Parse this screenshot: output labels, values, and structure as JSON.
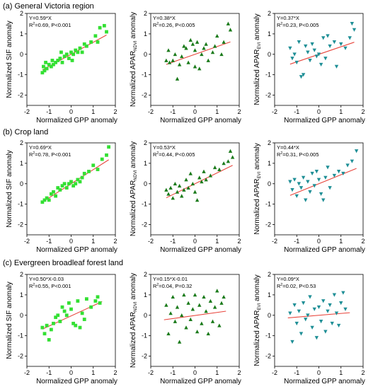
{
  "rows": [
    {
      "label": "(a) General Victoria region"
    },
    {
      "label": "(b) Crop land"
    },
    {
      "label": "(c) Evergreen broadleaf forest land"
    }
  ],
  "colors": {
    "sif": "#33e033",
    "ndvi": "#1a7a1a",
    "evi": "#1f8f96",
    "fit": "#e8453c"
  },
  "chart_data": [
    {
      "type": "scatter",
      "row": 0,
      "col": 0,
      "marker": "square",
      "color": "#33e033",
      "xlabel": "Normalized GPP anomaly",
      "ylabel": "Normalized SIF anomaly",
      "xlim": [
        -2,
        2
      ],
      "ylim": [
        -2.5,
        2
      ],
      "xticks": [
        -2,
        -1,
        0,
        1,
        2
      ],
      "yticks": [
        -2,
        -1,
        0,
        1,
        2
      ],
      "eq": "Y=0.59*X",
      "r2_prefix": "R",
      "r2_sup": "2",
      "r2_rest": "=0.69, P<0.001",
      "fit": {
        "slope": 0.59,
        "intercept": 0,
        "x": [
          -1.3,
          1.6
        ]
      },
      "points": [
        [
          -1.3,
          -0.9
        ],
        [
          -1.25,
          -0.6
        ],
        [
          -1.2,
          -0.8
        ],
        [
          -1.15,
          -0.4
        ],
        [
          -1.1,
          -0.7
        ],
        [
          -1.0,
          -0.5
        ],
        [
          -0.9,
          -0.6
        ],
        [
          -0.85,
          -0.3
        ],
        [
          -0.8,
          -0.5
        ],
        [
          -0.7,
          -0.4
        ],
        [
          -0.6,
          -0.3
        ],
        [
          -0.5,
          -0.2
        ],
        [
          -0.45,
          0.1
        ],
        [
          -0.4,
          -0.4
        ],
        [
          -0.3,
          -0.1
        ],
        [
          -0.2,
          0.0
        ],
        [
          -0.1,
          -0.2
        ],
        [
          0.0,
          0.1
        ],
        [
          0.05,
          -0.3
        ],
        [
          0.1,
          0.0
        ],
        [
          0.2,
          0.2
        ],
        [
          0.3,
          0.1
        ],
        [
          0.4,
          0.3
        ],
        [
          0.5,
          0.1
        ],
        [
          0.6,
          0.5
        ],
        [
          0.7,
          0.4
        ],
        [
          0.9,
          0.6
        ],
        [
          1.1,
          0.9
        ],
        [
          1.2,
          0.6
        ],
        [
          1.3,
          1.3
        ],
        [
          1.5,
          1.4
        ],
        [
          1.6,
          1.1
        ]
      ]
    },
    {
      "type": "scatter",
      "row": 0,
      "col": 1,
      "marker": "triangle-up",
      "color": "#1a7a1a",
      "xlabel": "Normalized GPP anomaly",
      "ylabel_main": "Normalized APAR",
      "ylabel_sub": "NDVI",
      "ylabel_tail": " anomaly",
      "xlim": [
        -2,
        2
      ],
      "ylim": [
        -2.5,
        2
      ],
      "xticks": [
        -2,
        -1,
        0,
        1,
        2
      ],
      "yticks": [
        -2,
        -1,
        0,
        1,
        2
      ],
      "eq": "Y=0.38*X",
      "r2_prefix": "R",
      "r2_sup": "2",
      "r2_rest": "=0.26, P<0.005",
      "fit": {
        "slope": 0.38,
        "intercept": 0,
        "x": [
          -1.3,
          1.6
        ]
      },
      "points": [
        [
          -1.3,
          -0.3
        ],
        [
          -1.2,
          0.2
        ],
        [
          -1.15,
          -0.4
        ],
        [
          -1.0,
          -0.3
        ],
        [
          -0.9,
          0.0
        ],
        [
          -0.8,
          -1.2
        ],
        [
          -0.7,
          -0.5
        ],
        [
          -0.6,
          -0.1
        ],
        [
          -0.5,
          0.4
        ],
        [
          -0.4,
          0.3
        ],
        [
          -0.3,
          -0.4
        ],
        [
          -0.2,
          0.7
        ],
        [
          -0.1,
          0.5
        ],
        [
          0.0,
          0.2
        ],
        [
          0.0,
          -0.6
        ],
        [
          0.1,
          0.6
        ],
        [
          0.2,
          -0.7
        ],
        [
          0.3,
          0.0
        ],
        [
          0.4,
          0.3
        ],
        [
          0.5,
          0.5
        ],
        [
          0.6,
          -0.3
        ],
        [
          0.8,
          0.1
        ],
        [
          0.9,
          0.4
        ],
        [
          1.0,
          0.9
        ],
        [
          1.2,
          0.0
        ],
        [
          1.3,
          0.6
        ],
        [
          1.5,
          1.5
        ],
        [
          1.6,
          1.2
        ]
      ]
    },
    {
      "type": "scatter",
      "row": 0,
      "col": 2,
      "marker": "triangle-down",
      "color": "#1f8f96",
      "xlabel": "Normalized GPP anomaly",
      "ylabel_main": "Normalized APAR",
      "ylabel_sub": "EVI",
      "ylabel_tail": " anomaly",
      "xlim": [
        -2,
        2
      ],
      "ylim": [
        -2.5,
        2
      ],
      "xticks": [
        -2,
        -1,
        0,
        1,
        2
      ],
      "yticks": [
        -2,
        -1,
        0,
        1,
        2
      ],
      "eq": "Y=0.37*X",
      "r2_prefix": "R",
      "r2_sup": "2",
      "r2_rest": "=0.23, P<0.005",
      "fit": {
        "slope": 0.37,
        "intercept": 0,
        "x": [
          -1.3,
          1.6
        ]
      },
      "points": [
        [
          -1.3,
          0.3
        ],
        [
          -1.2,
          -0.2
        ],
        [
          -1.1,
          0.0
        ],
        [
          -1.0,
          -0.4
        ],
        [
          -0.9,
          0.6
        ],
        [
          -0.8,
          -1.1
        ],
        [
          -0.7,
          -1.0
        ],
        [
          -0.6,
          0.4
        ],
        [
          -0.5,
          0.1
        ],
        [
          -0.4,
          -0.3
        ],
        [
          -0.3,
          0.5
        ],
        [
          -0.2,
          0.2
        ],
        [
          -0.1,
          -0.1
        ],
        [
          0.0,
          0.0
        ],
        [
          0.1,
          -0.5
        ],
        [
          0.2,
          0.8
        ],
        [
          0.3,
          -0.2
        ],
        [
          0.4,
          0.9
        ],
        [
          0.5,
          0.4
        ],
        [
          0.7,
          0.6
        ],
        [
          0.8,
          -0.6
        ],
        [
          1.0,
          0.5
        ],
        [
          1.2,
          0.3
        ],
        [
          1.4,
          0.8
        ],
        [
          1.5,
          1.5
        ],
        [
          1.6,
          1.2
        ]
      ]
    },
    {
      "type": "scatter",
      "row": 1,
      "col": 0,
      "marker": "square",
      "color": "#33e033",
      "xlabel": "Normalized GPP anomaly",
      "ylabel": "Normalized SIF anomaly",
      "xlim": [
        -2,
        2
      ],
      "ylim": [
        -2.5,
        2
      ],
      "xticks": [
        -2,
        -1,
        0,
        1,
        2
      ],
      "yticks": [
        -2,
        -1,
        0,
        1,
        2
      ],
      "eq": "Y=0.69*X",
      "r2_prefix": "R",
      "r2_sup": "2",
      "r2_rest": "=0.78, P<0.001",
      "fit": {
        "slope": 0.69,
        "intercept": 0,
        "x": [
          -1.3,
          1.7
        ]
      },
      "points": [
        [
          -1.3,
          -0.9
        ],
        [
          -1.2,
          -0.8
        ],
        [
          -1.1,
          -0.7
        ],
        [
          -1.0,
          -0.8
        ],
        [
          -0.9,
          -0.5
        ],
        [
          -0.8,
          -0.4
        ],
        [
          -0.7,
          -0.6
        ],
        [
          -0.6,
          -0.2
        ],
        [
          -0.5,
          -0.3
        ],
        [
          -0.4,
          -0.1
        ],
        [
          -0.3,
          0.0
        ],
        [
          -0.2,
          -0.2
        ],
        [
          -0.1,
          0.0
        ],
        [
          0.0,
          0.1
        ],
        [
          0.1,
          -0.1
        ],
        [
          0.2,
          0.0
        ],
        [
          0.3,
          0.2
        ],
        [
          0.4,
          0.1
        ],
        [
          0.5,
          0.3
        ],
        [
          0.6,
          0.5
        ],
        [
          0.8,
          0.6
        ],
        [
          1.0,
          0.9
        ],
        [
          1.2,
          0.7
        ],
        [
          1.4,
          1.2
        ],
        [
          1.6,
          1.4
        ],
        [
          1.7,
          1.8
        ]
      ]
    },
    {
      "type": "scatter",
      "row": 1,
      "col": 1,
      "marker": "triangle-up",
      "color": "#1a7a1a",
      "xlabel": "Normalized GPP anomaly",
      "ylabel_main": "Normalized APAR",
      "ylabel_sub": "NDVI",
      "ylabel_tail": " anomaly",
      "xlim": [
        -2,
        2
      ],
      "ylim": [
        -2.5,
        2
      ],
      "xticks": [
        -2,
        -1,
        0,
        1,
        2
      ],
      "yticks": [
        -2,
        -1,
        0,
        1,
        2
      ],
      "eq": "Y=0.53*X",
      "r2_prefix": "R",
      "r2_sup": "2",
      "r2_rest": "=0.44, P<0.005",
      "fit": {
        "slope": 0.53,
        "intercept": 0,
        "x": [
          -1.3,
          1.7
        ]
      },
      "points": [
        [
          -1.3,
          -0.3
        ],
        [
          -1.2,
          -0.5
        ],
        [
          -1.1,
          -0.2
        ],
        [
          -1.0,
          -0.7
        ],
        [
          -0.9,
          0.0
        ],
        [
          -0.8,
          -0.4
        ],
        [
          -0.7,
          -0.1
        ],
        [
          -0.6,
          -0.6
        ],
        [
          -0.5,
          -0.3
        ],
        [
          -0.4,
          0.2
        ],
        [
          -0.3,
          -0.2
        ],
        [
          -0.2,
          0.5
        ],
        [
          -0.1,
          0.0
        ],
        [
          0.0,
          -0.4
        ],
        [
          0.1,
          -0.8
        ],
        [
          0.2,
          0.3
        ],
        [
          0.3,
          0.1
        ],
        [
          0.4,
          0.6
        ],
        [
          0.5,
          0.2
        ],
        [
          0.7,
          0.4
        ],
        [
          0.9,
          0.8
        ],
        [
          1.1,
          0.7
        ],
        [
          1.3,
          1.0
        ],
        [
          1.5,
          1.1
        ],
        [
          1.6,
          1.6
        ],
        [
          1.7,
          1.3
        ]
      ]
    },
    {
      "type": "scatter",
      "row": 1,
      "col": 2,
      "marker": "triangle-down",
      "color": "#1f8f96",
      "xlabel": "Normalized GPP anomaly",
      "ylabel_main": "Normalized APAR",
      "ylabel_sub": "EVI",
      "ylabel_tail": " anomaly",
      "xlim": [
        -2,
        2
      ],
      "ylim": [
        -2.5,
        2
      ],
      "xticks": [
        -2,
        -1,
        0,
        1,
        2
      ],
      "yticks": [
        -2,
        -1,
        0,
        1,
        2
      ],
      "eq": "Y=0.44*X",
      "r2_prefix": "R",
      "r2_sup": "2",
      "r2_rest": "=0.31, P<0.005",
      "fit": {
        "slope": 0.44,
        "intercept": 0,
        "x": [
          -1.3,
          1.7
        ]
      },
      "points": [
        [
          -1.3,
          0.1
        ],
        [
          -1.2,
          -0.3
        ],
        [
          -1.1,
          0.2
        ],
        [
          -1.0,
          -0.6
        ],
        [
          -0.9,
          0.0
        ],
        [
          -0.8,
          -0.2
        ],
        [
          -0.7,
          0.3
        ],
        [
          -0.6,
          -0.8
        ],
        [
          -0.5,
          0.1
        ],
        [
          -0.4,
          -0.4
        ],
        [
          -0.3,
          0.5
        ],
        [
          -0.2,
          -0.1
        ],
        [
          -0.1,
          0.6
        ],
        [
          0.0,
          0.2
        ],
        [
          0.1,
          -0.5
        ],
        [
          0.2,
          -0.8
        ],
        [
          0.3,
          0.3
        ],
        [
          0.4,
          0.8
        ],
        [
          0.5,
          -0.2
        ],
        [
          0.7,
          0.4
        ],
        [
          0.9,
          0.6
        ],
        [
          1.1,
          0.5
        ],
        [
          1.3,
          0.9
        ],
        [
          1.5,
          1.1
        ],
        [
          1.7,
          1.6
        ]
      ]
    },
    {
      "type": "scatter",
      "row": 2,
      "col": 0,
      "marker": "square",
      "color": "#33e033",
      "xlabel": "Normalized GPP anomaly",
      "ylabel": "Normalized SIF anomaly",
      "xlim": [
        -2,
        2
      ],
      "ylim": [
        -2.5,
        2
      ],
      "xticks": [
        -2,
        -1,
        0,
        1,
        2
      ],
      "yticks": [
        -2,
        -1,
        0,
        1,
        2
      ],
      "eq": "Y=0.50*X-0.03",
      "r2_prefix": "R",
      "r2_sup": "2",
      "r2_rest": "=0.55, P<0.001",
      "fit": {
        "slope": 0.5,
        "intercept": -0.03,
        "x": [
          -1.3,
          1.4
        ]
      },
      "points": [
        [
          -1.3,
          -0.6
        ],
        [
          -1.2,
          -0.9
        ],
        [
          -1.1,
          -0.5
        ],
        [
          -1.0,
          -1.2
        ],
        [
          -0.9,
          -0.7
        ],
        [
          -0.8,
          -0.4
        ],
        [
          -0.7,
          -0.1
        ],
        [
          -0.6,
          0.0
        ],
        [
          -0.5,
          -0.3
        ],
        [
          -0.4,
          0.4
        ],
        [
          -0.3,
          0.2
        ],
        [
          -0.2,
          0.0
        ],
        [
          -0.1,
          0.6
        ],
        [
          0.0,
          0.3
        ],
        [
          0.1,
          -0.4
        ],
        [
          0.2,
          -0.5
        ],
        [
          0.3,
          0.7
        ],
        [
          0.4,
          -0.6
        ],
        [
          0.5,
          0.1
        ],
        [
          0.6,
          -0.2
        ],
        [
          0.7,
          0.8
        ],
        [
          0.9,
          0.4
        ],
        [
          1.1,
          0.7
        ],
        [
          1.2,
          0.9
        ],
        [
          1.3,
          0.6
        ]
      ]
    },
    {
      "type": "scatter",
      "row": 2,
      "col": 1,
      "marker": "triangle-up",
      "color": "#1a7a1a",
      "xlabel": "Normalized GPP anomaly",
      "ylabel_main": "Normalized APAR",
      "ylabel_sub": "NDVI",
      "ylabel_tail": " anomaly",
      "xlim": [
        -2,
        2
      ],
      "ylim": [
        -2.5,
        2
      ],
      "xticks": [
        -2,
        -1,
        0,
        1,
        2
      ],
      "yticks": [
        -2,
        -1,
        0,
        1,
        2
      ],
      "eq": "Y=0.15*X-0.01",
      "r2_prefix": "R",
      "r2_sup": "2",
      "r2_rest": "=0.04, P=0.32",
      "fit": {
        "slope": 0.15,
        "intercept": -0.01,
        "x": [
          -1.4,
          1.4
        ]
      },
      "points": [
        [
          -1.3,
          0.5
        ],
        [
          -1.2,
          -0.9
        ],
        [
          -1.1,
          0.1
        ],
        [
          -1.0,
          0.9
        ],
        [
          -0.9,
          -0.3
        ],
        [
          -0.8,
          0.4
        ],
        [
          -0.7,
          -1.3
        ],
        [
          -0.6,
          0.0
        ],
        [
          -0.5,
          1.0
        ],
        [
          -0.4,
          -0.6
        ],
        [
          -0.3,
          0.6
        ],
        [
          -0.2,
          -0.2
        ],
        [
          -0.1,
          0.3
        ],
        [
          0.0,
          1.0
        ],
        [
          0.1,
          -0.8
        ],
        [
          0.2,
          0.5
        ],
        [
          0.3,
          -0.4
        ],
        [
          0.4,
          0.9
        ],
        [
          0.5,
          0.2
        ],
        [
          0.6,
          -0.9
        ],
        [
          0.7,
          0.7
        ],
        [
          0.8,
          -0.3
        ],
        [
          0.9,
          0.4
        ],
        [
          1.0,
          1.2
        ],
        [
          1.1,
          -0.5
        ],
        [
          1.2,
          0.6
        ],
        [
          1.3,
          0.9
        ]
      ]
    },
    {
      "type": "scatter",
      "row": 2,
      "col": 2,
      "marker": "triangle-down",
      "color": "#1f8f96",
      "xlabel": "Normalized GPP anomaly",
      "ylabel_main": "Normalized APAR",
      "ylabel_sub": "EVI",
      "ylabel_tail": " anomaly",
      "xlim": [
        -2,
        2
      ],
      "ylim": [
        -2.5,
        2
      ],
      "xticks": [
        -2,
        -1,
        0,
        1,
        2
      ],
      "yticks": [
        -2,
        -1,
        0,
        1,
        2
      ],
      "eq": "Y=0.09*X",
      "r2_prefix": "R",
      "r2_sup": "2",
      "r2_rest": "=0.02, P<0.53",
      "fit": {
        "slope": 0.09,
        "intercept": 0,
        "x": [
          -1.4,
          1.4
        ]
      },
      "points": [
        [
          -1.3,
          0.1
        ],
        [
          -1.2,
          -1.3
        ],
        [
          -1.1,
          0.5
        ],
        [
          -1.0,
          -0.4
        ],
        [
          -0.9,
          0.2
        ],
        [
          -0.8,
          -0.9
        ],
        [
          -0.7,
          0.6
        ],
        [
          -0.6,
          -0.2
        ],
        [
          -0.5,
          0.0
        ],
        [
          -0.4,
          0.9
        ],
        [
          -0.3,
          -0.6
        ],
        [
          -0.2,
          0.3
        ],
        [
          -0.1,
          -1.1
        ],
        [
          0.0,
          0.4
        ],
        [
          0.1,
          -0.3
        ],
        [
          0.2,
          0.7
        ],
        [
          0.3,
          -0.8
        ],
        [
          0.4,
          0.2
        ],
        [
          0.5,
          0.5
        ],
        [
          0.6,
          -0.4
        ],
        [
          0.7,
          1.0
        ],
        [
          0.8,
          0.1
        ],
        [
          0.9,
          -0.5
        ],
        [
          1.0,
          0.6
        ],
        [
          1.1,
          1.1
        ],
        [
          1.2,
          0.3
        ]
      ]
    }
  ]
}
